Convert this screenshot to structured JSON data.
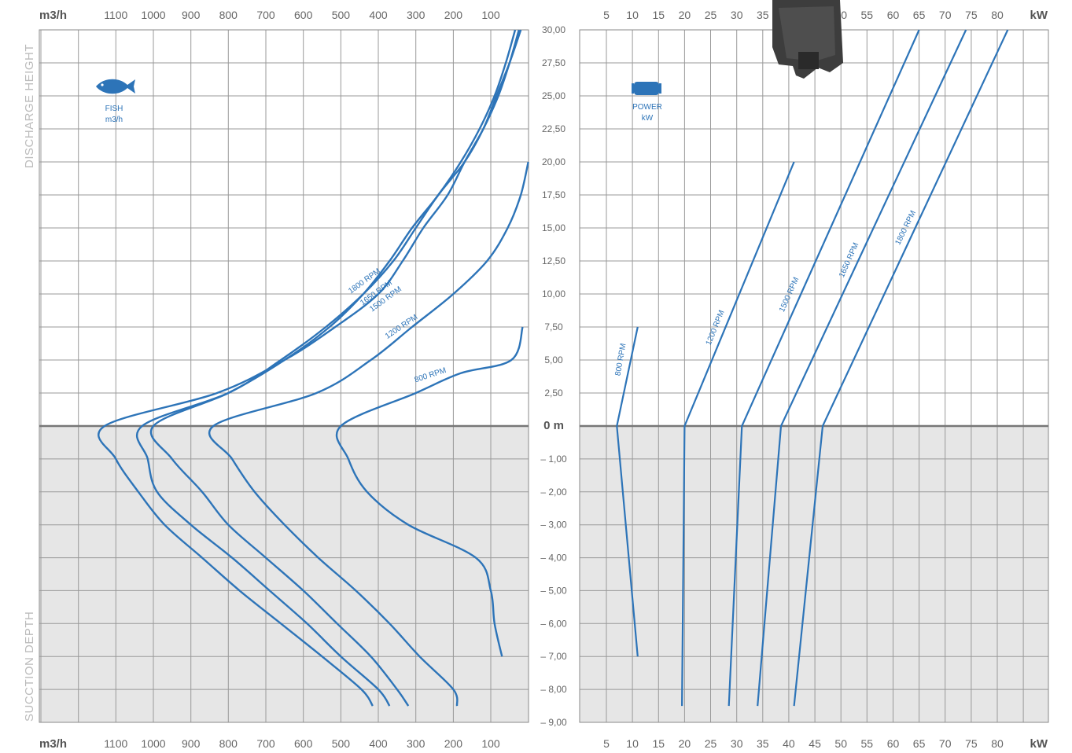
{
  "chart_data": [
    {
      "type": "line",
      "unit_label": "m3/h",
      "x_ticks": [
        "1100",
        "1000",
        "900",
        "800",
        "700",
        "600",
        "500",
        "400",
        "300",
        "200",
        "100"
      ],
      "side_label_top": "DISCHARGE HEIGHT",
      "side_label_bottom": "SUCCTION DEPTH",
      "icon": "fish-icon",
      "icon_caption": [
        "FISH",
        "m3/h"
      ],
      "x_axis": {
        "reversed": true,
        "xlim": [
          0,
          1300
        ]
      },
      "y_axis": {
        "ylim": [
          -9,
          30
        ],
        "zero_label": "0 m"
      },
      "shaded_region": "suction depth below 0 m",
      "series": [
        {
          "name": "1800 RPM",
          "points": [
            [
              25,
              30
            ],
            [
              50,
              27.5
            ],
            [
              80,
              25
            ],
            [
              120,
              22.5
            ],
            [
              170,
              20
            ],
            [
              215,
              17.5
            ],
            [
              280,
              15
            ],
            [
              335,
              12.5
            ],
            [
              400,
              10
            ],
            [
              515,
              7.5
            ],
            [
              650,
              5
            ],
            [
              830,
              2.5
            ],
            [
              1130,
              0
            ],
            [
              1100,
              -1
            ],
            [
              1040,
              -2
            ],
            [
              970,
              -3
            ],
            [
              870,
              -4
            ],
            [
              770,
              -5
            ],
            [
              660,
              -6
            ],
            [
              550,
              -7
            ],
            [
              445,
              -8
            ],
            [
              415,
              -8.5
            ]
          ]
        },
        {
          "name": "1650 RPM",
          "points": [
            [
              20,
              30
            ],
            [
              50,
              27.5
            ],
            [
              85,
              25
            ],
            [
              120,
              22.5
            ],
            [
              170,
              20
            ],
            [
              240,
              17.5
            ],
            [
              300,
              15
            ],
            [
              360,
              12.5
            ],
            [
              440,
              10
            ],
            [
              540,
              7.5
            ],
            [
              660,
              5
            ],
            [
              800,
              2.5
            ],
            [
              1030,
              0
            ],
            [
              1015,
              -1
            ],
            [
              990,
              -2
            ],
            [
              900,
              -3
            ],
            [
              790,
              -4
            ],
            [
              690,
              -5
            ],
            [
              590,
              -6
            ],
            [
              500,
              -7
            ],
            [
              400,
              -8
            ],
            [
              370,
              -8.5
            ]
          ]
        },
        {
          "name": "1500 RPM",
          "points": [
            [
              35,
              30
            ],
            [
              60,
              27.5
            ],
            [
              90,
              25
            ],
            [
              130,
              22.5
            ],
            [
              180,
              20
            ],
            [
              240,
              17.5
            ],
            [
              310,
              15
            ],
            [
              370,
              12.5
            ],
            [
              440,
              10
            ],
            [
              530,
              7.5
            ],
            [
              650,
              5
            ],
            [
              800,
              2.5
            ],
            [
              1000,
              0
            ],
            [
              950,
              -1
            ],
            [
              870,
              -2
            ],
            [
              800,
              -3
            ],
            [
              700,
              -4
            ],
            [
              600,
              -5
            ],
            [
              510,
              -6
            ],
            [
              420,
              -7
            ],
            [
              350,
              -8
            ],
            [
              320,
              -8.5
            ]
          ]
        },
        {
          "name": "1200 RPM",
          "points": [
            [
              0,
              20
            ],
            [
              20,
              17.5
            ],
            [
              55,
              15
            ],
            [
              110,
              12.5
            ],
            [
              200,
              10
            ],
            [
              310,
              7.5
            ],
            [
              420,
              5
            ],
            [
              565,
              2.5
            ],
            [
              840,
              0
            ],
            [
              790,
              -1
            ],
            [
              730,
              -2
            ],
            [
              650,
              -3
            ],
            [
              560,
              -4
            ],
            [
              460,
              -5
            ],
            [
              370,
              -6
            ],
            [
              290,
              -7
            ],
            [
              200,
              -8
            ],
            [
              190,
              -8.5
            ]
          ]
        },
        {
          "name": "800 RPM",
          "points": [
            [
              15,
              7.5
            ],
            [
              45,
              5
            ],
            [
              180,
              4
            ],
            [
              300,
              2.5
            ],
            [
              500,
              0
            ],
            [
              480,
              -1
            ],
            [
              430,
              -2
            ],
            [
              320,
              -3
            ],
            [
              140,
              -4
            ],
            [
              100,
              -5
            ],
            [
              90,
              -6
            ],
            [
              70,
              -7
            ]
          ]
        }
      ]
    },
    {
      "type": "line",
      "unit_label": "kW",
      "x_ticks": [
        "5",
        "10",
        "15",
        "20",
        "25",
        "30",
        "35",
        "40",
        "45",
        "50",
        "55",
        "60",
        "65",
        "70",
        "75",
        "80"
      ],
      "y_ticks": [
        "30,00",
        "27,50",
        "25,00",
        "22,50",
        "20,00",
        "17,50",
        "15,00",
        "12,50",
        "10,00",
        "7,50",
        "5,00",
        "2,50",
        "0 m",
        "– 1,00",
        "– 2,00",
        "– 3,00",
        "– 4,00",
        "– 5,00",
        "– 6,00",
        "– 7,00",
        "– 8,00",
        "– 9,00"
      ],
      "icon": "power-icon",
      "icon_caption": [
        "POWER",
        "kW"
      ],
      "x_axis": {
        "xlim": [
          0,
          90
        ]
      },
      "y_axis": {
        "ylim": [
          -9,
          30
        ]
      },
      "series": [
        {
          "name": "800 RPM",
          "points": [
            [
              11,
              -7
            ],
            [
              7,
              0
            ],
            [
              11,
              7.5
            ]
          ]
        },
        {
          "name": "1200 RPM",
          "points": [
            [
              19.5,
              -8.5
            ],
            [
              20,
              0
            ],
            [
              41,
              20
            ]
          ]
        },
        {
          "name": "1500 RPM",
          "points": [
            [
              28.5,
              -8.5
            ],
            [
              31,
              0
            ],
            [
              65,
              30
            ]
          ]
        },
        {
          "name": "1650 RPM",
          "points": [
            [
              34,
              -8.5
            ],
            [
              38.5,
              0
            ],
            [
              74,
              30
            ]
          ]
        },
        {
          "name": "1800 RPM",
          "points": [
            [
              41,
              -8.5
            ],
            [
              46.5,
              0
            ],
            [
              82,
              30
            ]
          ]
        }
      ]
    }
  ],
  "colors": {
    "curve": "#2d74b8",
    "grid": "#999999",
    "shade": "#e6e6e6",
    "tick_text": "#666666"
  }
}
